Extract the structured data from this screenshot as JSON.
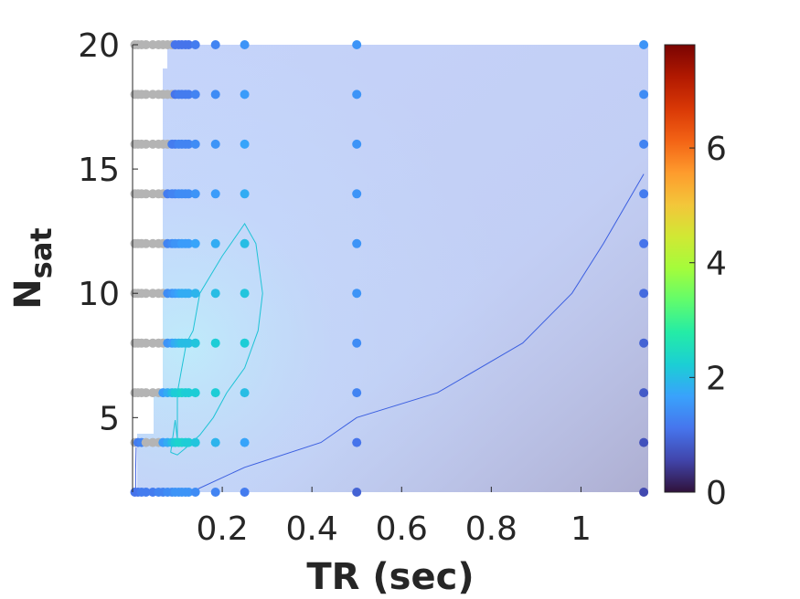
{
  "chart_data": {
    "type": "scatter",
    "title": "",
    "xlabel": "TR (sec)",
    "ylabel_main": "N",
    "ylabel_sub": "sat",
    "xlim": [
      0,
      1.15
    ],
    "ylim": [
      2,
      20
    ],
    "x_ticks": [
      0.2,
      0.4,
      0.6,
      0.8,
      1.0
    ],
    "x_tick_labels": [
      "0.2",
      "0.4",
      "0.6",
      "0.8",
      "1"
    ],
    "y_ticks": [
      5,
      10,
      15,
      20
    ],
    "y_tick_labels": [
      "5",
      "10",
      "15",
      "20"
    ],
    "colorbar": {
      "colormap": "turbo",
      "range": [
        0,
        7.8
      ],
      "ticks": [
        0,
        2,
        4,
        6
      ],
      "tick_labels": [
        "0",
        "2",
        "4",
        "6"
      ]
    },
    "grid": false,
    "n_sat_levels": [
      2,
      4,
      6,
      8,
      10,
      12,
      14,
      16,
      18,
      20
    ],
    "invalid_color": "#b4b4b4",
    "point_columns": [
      {
        "tr": 0.005,
        "values": [
          1.1,
          null,
          null,
          null,
          null,
          null,
          null,
          null,
          null,
          null
        ]
      },
      {
        "tr": 0.012,
        "values": [
          1.1,
          1.2,
          null,
          null,
          null,
          null,
          null,
          null,
          null,
          null
        ]
      },
      {
        "tr": 0.02,
        "values": [
          1.2,
          1.3,
          null,
          null,
          null,
          null,
          null,
          null,
          null,
          null
        ]
      },
      {
        "tr": 0.03,
        "values": [
          1.2,
          null,
          null,
          null,
          null,
          null,
          null,
          null,
          null,
          null
        ]
      },
      {
        "tr": 0.045,
        "values": [
          1.2,
          null,
          null,
          null,
          null,
          null,
          null,
          null,
          null,
          null
        ]
      },
      {
        "tr": 0.058,
        "values": [
          1.3,
          null,
          null,
          null,
          null,
          null,
          null,
          null,
          null,
          null
        ]
      },
      {
        "tr": 0.068,
        "values": [
          1.3,
          1.6,
          1.6,
          null,
          null,
          null,
          null,
          null,
          null,
          null
        ]
      },
      {
        "tr": 0.078,
        "values": [
          1.4,
          1.8,
          1.8,
          1.5,
          1.4,
          1.3,
          1.2,
          null,
          null,
          null
        ]
      },
      {
        "tr": 0.088,
        "values": [
          1.4,
          2.0,
          2.0,
          1.6,
          1.5,
          1.4,
          1.3,
          1.2,
          null,
          null
        ]
      },
      {
        "tr": 0.095,
        "values": [
          1.5,
          2.2,
          2.2,
          1.8,
          1.6,
          1.5,
          1.3,
          1.2,
          1.1,
          1.1
        ]
      },
      {
        "tr": 0.103,
        "values": [
          1.5,
          2.3,
          2.2,
          1.9,
          1.7,
          1.5,
          1.4,
          1.3,
          1.2,
          1.1
        ]
      },
      {
        "tr": 0.11,
        "values": [
          1.5,
          2.3,
          2.3,
          2.0,
          1.8,
          1.6,
          1.4,
          1.3,
          1.2,
          1.1
        ]
      },
      {
        "tr": 0.118,
        "values": [
          1.5,
          2.2,
          2.2,
          2.0,
          1.8,
          1.6,
          1.4,
          1.3,
          1.2,
          1.1
        ]
      },
      {
        "tr": 0.125,
        "values": [
          1.5,
          2.2,
          2.2,
          2.0,
          1.8,
          1.6,
          1.4,
          1.3,
          1.2,
          1.1
        ]
      },
      {
        "tr": 0.14,
        "values": [
          1.4,
          2.1,
          2.2,
          2.1,
          1.9,
          1.7,
          1.5,
          1.4,
          1.3,
          1.2
        ]
      },
      {
        "tr": 0.185,
        "values": [
          1.3,
          1.9,
          2.2,
          2.2,
          2.0,
          1.8,
          1.6,
          1.5,
          1.4,
          1.3
        ]
      },
      {
        "tr": 0.25,
        "values": [
          1.2,
          1.7,
          2.0,
          2.2,
          2.1,
          2.0,
          1.8,
          1.7,
          1.6,
          1.5
        ]
      },
      {
        "tr": 0.5,
        "values": [
          0.9,
          1.1,
          1.3,
          1.4,
          1.5,
          1.5,
          1.5,
          1.5,
          1.5,
          1.5
        ]
      },
      {
        "tr": 1.14,
        "values": [
          0.6,
          0.7,
          0.8,
          0.9,
          1.0,
          1.1,
          1.2,
          1.3,
          1.4,
          1.5
        ]
      }
    ],
    "contour_levels": [
      {
        "level": 1.0,
        "color": "#3b5fe0",
        "points": [
          [
            0.007,
            2.0
          ],
          [
            0.007,
            2.9
          ],
          [
            0.008,
            3.8
          ]
        ]
      },
      {
        "level": 1.0,
        "color": "#3b5fe0",
        "points": [
          [
            0.13,
            2.0
          ],
          [
            0.25,
            3.0
          ],
          [
            0.42,
            4.0
          ],
          [
            0.5,
            5.0
          ],
          [
            0.68,
            6.0
          ],
          [
            0.87,
            8.0
          ],
          [
            0.98,
            10.0
          ],
          [
            1.05,
            12.0
          ],
          [
            1.14,
            14.8
          ]
        ]
      },
      {
        "level": 2.0,
        "color": "#1ec3d6",
        "points": [
          [
            0.085,
            3.6
          ],
          [
            0.095,
            4.9
          ],
          [
            0.1,
            4.1
          ],
          [
            0.1,
            6.0
          ],
          [
            0.11,
            7.0
          ],
          [
            0.12,
            8.0
          ],
          [
            0.135,
            8.5
          ],
          [
            0.15,
            10.0
          ],
          [
            0.2,
            11.5
          ],
          [
            0.25,
            12.8
          ],
          [
            0.275,
            12.0
          ],
          [
            0.29,
            10.0
          ],
          [
            0.28,
            8.5
          ],
          [
            0.25,
            7.0
          ],
          [
            0.21,
            6.0
          ],
          [
            0.18,
            5.0
          ],
          [
            0.15,
            4.3
          ],
          [
            0.12,
            3.8
          ],
          [
            0.1,
            3.5
          ],
          [
            0.085,
            3.6
          ]
        ]
      }
    ]
  }
}
